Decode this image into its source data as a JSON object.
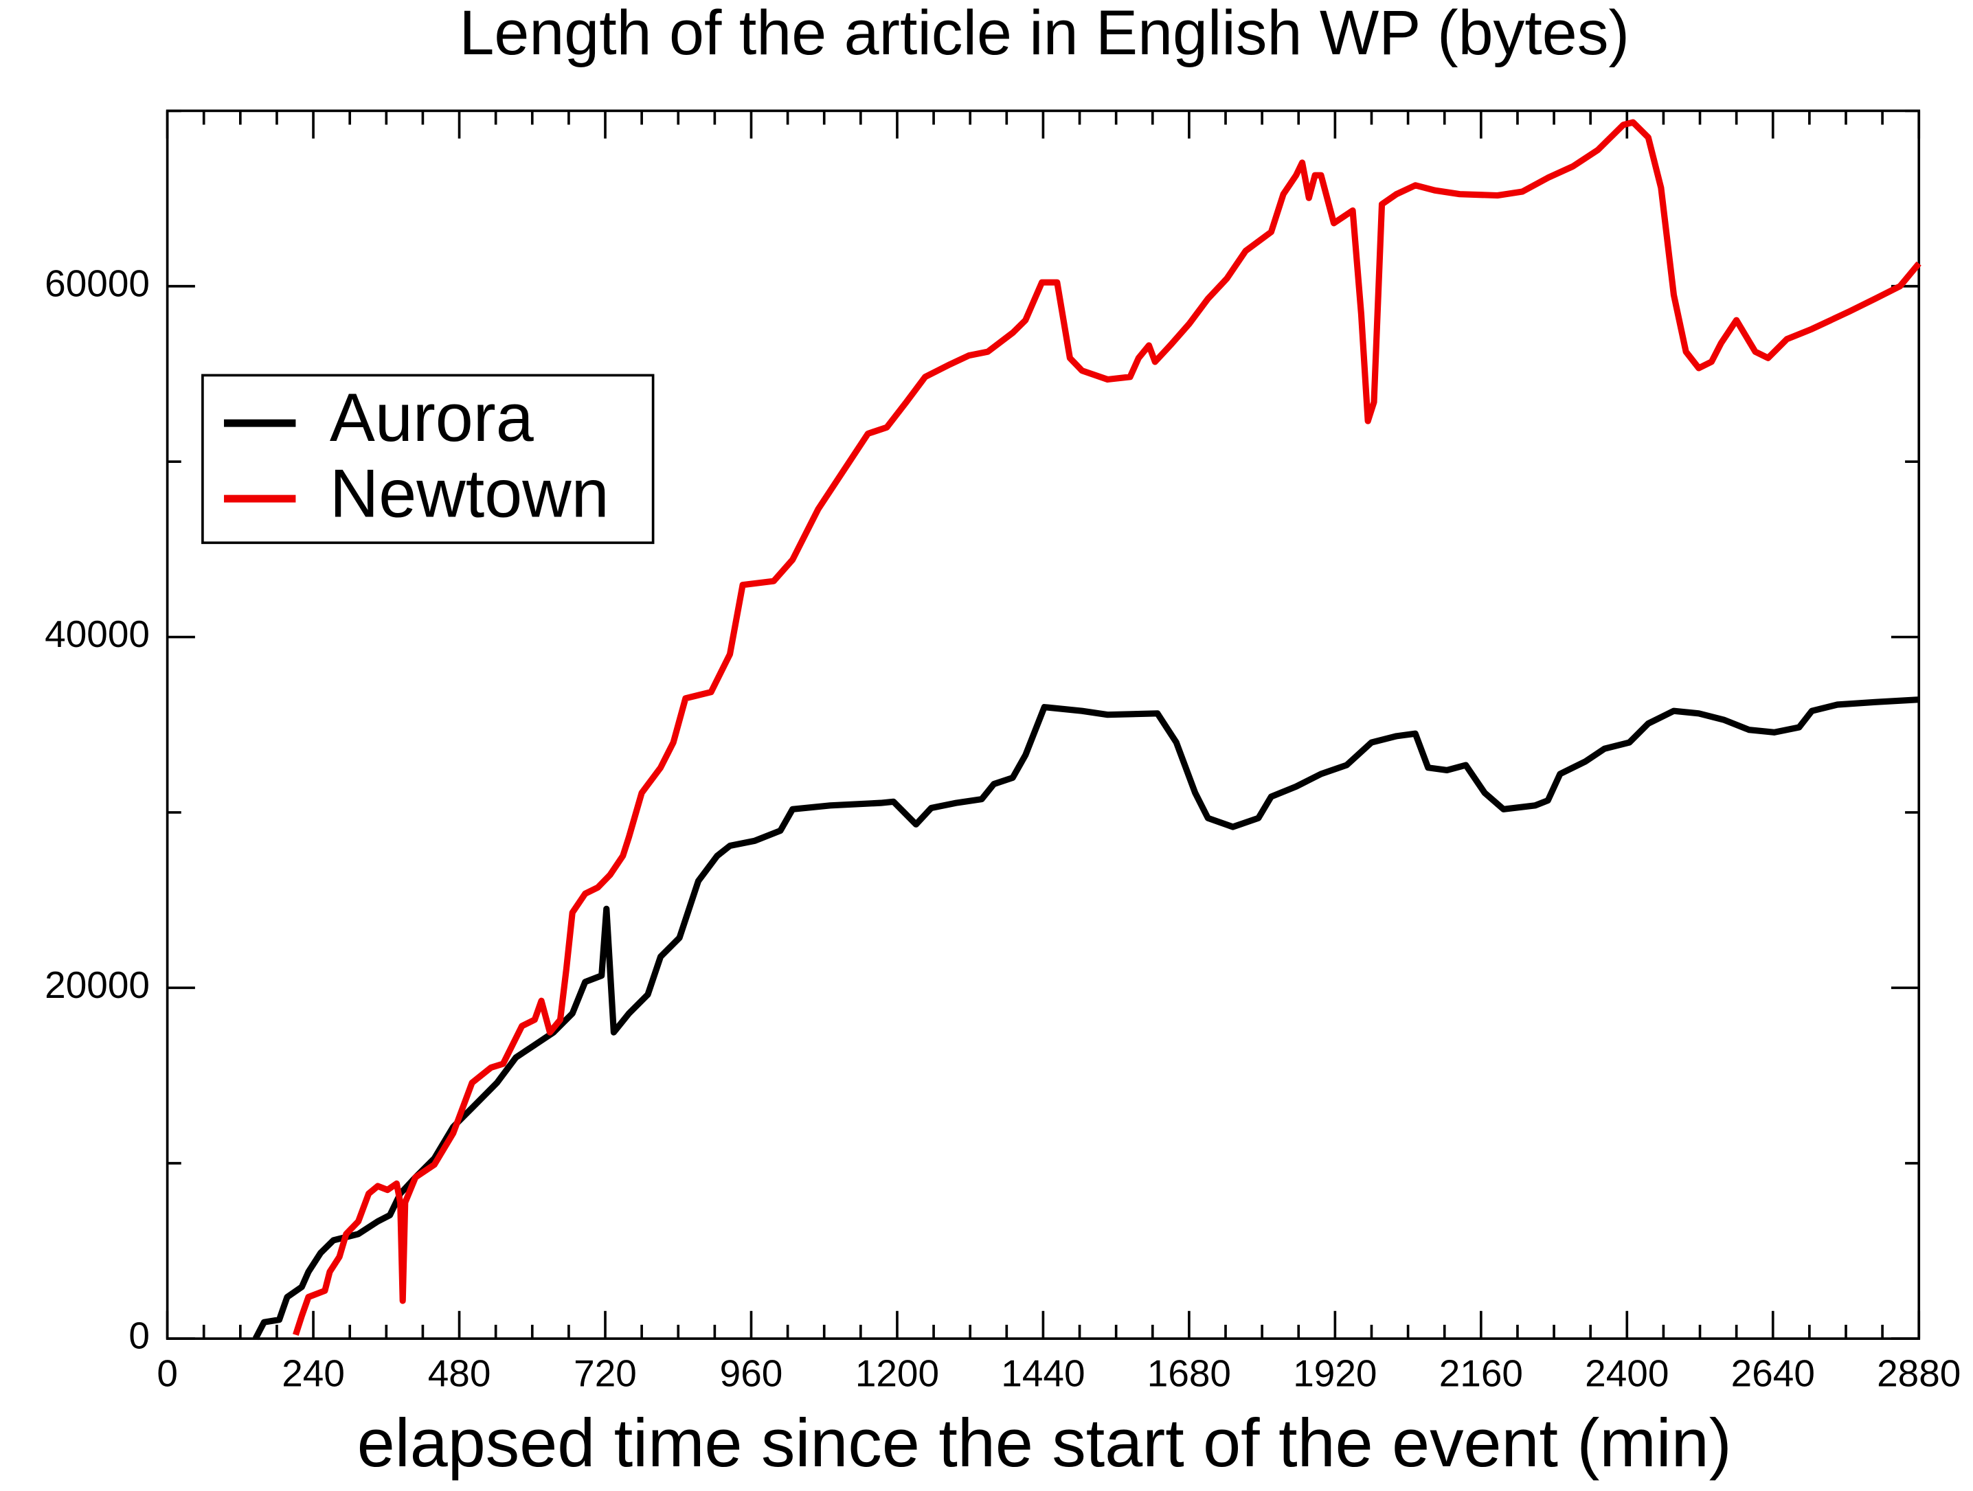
{
  "chart_data": {
    "type": "line",
    "title": "Length of the article in English WP (bytes)",
    "x_label": "elapsed time since the start of the event (min)",
    "xlim": [
      0,
      2880
    ],
    "ylim": [
      0,
      70000
    ],
    "xticks": [
      0,
      240,
      480,
      720,
      960,
      1200,
      1440,
      1680,
      1920,
      2160,
      2400,
      2640,
      2880
    ],
    "yticks": [
      0,
      20000,
      40000,
      60000
    ],
    "legend": "upper left",
    "series": [
      {
        "name": "Aurora",
        "color": "#000000",
        "x": [
          145,
          159,
          184,
          197,
          221,
          232,
          252,
          273,
          314,
          346,
          366,
          383,
          408,
          439,
          470,
          501,
          542,
          573,
          604,
          635,
          666,
          687,
          714,
          722,
          734,
          759,
          790,
          811,
          842,
          873,
          904,
          925,
          966,
          1008,
          1028,
          1090,
          1173,
          1194,
          1231,
          1256,
          1297,
          1339,
          1359,
          1390,
          1411,
          1442,
          1504,
          1546,
          1628,
          1659,
          1690,
          1711,
          1752,
          1794,
          1815,
          1856,
          1897,
          1939,
          1980,
          2021,
          2052,
          2073,
          2104,
          2135,
          2166,
          2197,
          2249,
          2270,
          2290,
          2332,
          2363,
          2404,
          2435,
          2477,
          2518,
          2559,
          2601,
          2642,
          2683,
          2704,
          2746,
          2808,
          2880
        ],
        "values": [
          0,
          934,
          1078,
          2371,
          2946,
          3809,
          4886,
          5605,
          5964,
          6683,
          7042,
          8264,
          9198,
          10276,
          12072,
          13150,
          14588,
          16025,
          16743,
          17462,
          18540,
          20336,
          20696,
          24504,
          17462,
          18540,
          19618,
          21774,
          22851,
          26085,
          27522,
          28097,
          28385,
          28960,
          30181,
          30397,
          30541,
          30612,
          29319,
          30253,
          30541,
          30756,
          31618,
          31978,
          33271,
          36002,
          35786,
          35571,
          35643,
          33990,
          31115,
          29678,
          29175,
          29678,
          30900,
          31475,
          32193,
          32696,
          33990,
          34349,
          34493,
          32553,
          32409,
          32696,
          31115,
          30181,
          30397,
          30684,
          32193,
          32911,
          33630,
          33990,
          35067,
          35786,
          35643,
          35283,
          34708,
          34565,
          34852,
          35786,
          36145,
          36289,
          36433
        ]
      },
      {
        "name": "Newtown",
        "color": "#ee0000",
        "x": [
          211,
          221,
          232,
          259,
          267,
          283,
          294,
          314,
          331,
          346,
          362,
          377,
          383,
          387,
          391,
          408,
          439,
          470,
          501,
          532,
          552,
          583,
          604,
          615,
          629,
          646,
          656,
          666,
          687,
          708,
          728,
          749,
          759,
          780,
          811,
          832,
          852,
          894,
          925,
          946,
          997,
          1028,
          1070,
          1111,
          1152,
          1183,
          1215,
          1246,
          1287,
          1318,
          1349,
          1390,
          1411,
          1438,
          1463,
          1484,
          1504,
          1546,
          1583,
          1597,
          1614,
          1624,
          1649,
          1680,
          1711,
          1742,
          1773,
          1815,
          1835,
          1856,
          1866,
          1877,
          1887,
          1897,
          1918,
          1949,
          1963,
          1974,
          1984,
          1997,
          2021,
          2052,
          2084,
          2125,
          2187,
          2228,
          2270,
          2311,
          2352,
          2394,
          2410,
          2435,
          2456,
          2477,
          2497,
          2518,
          2539,
          2555,
          2580,
          2611,
          2632,
          2663,
          2704,
          2766,
          2808,
          2849,
          2880
        ],
        "values": [
          216,
          1293,
          2371,
          2731,
          3809,
          4671,
          5964,
          6683,
          8264,
          8695,
          8479,
          8839,
          7761,
          2156,
          7761,
          9198,
          9917,
          11713,
          14588,
          15450,
          15665,
          17821,
          18181,
          19258,
          17462,
          18181,
          21055,
          24289,
          25367,
          25726,
          26444,
          27522,
          28600,
          31115,
          32553,
          33990,
          36505,
          36864,
          39020,
          42972,
          43188,
          44409,
          47284,
          49440,
          51595,
          51955,
          53392,
          54829,
          55548,
          56051,
          56266,
          57344,
          58063,
          60219,
          60219,
          55907,
          55188,
          54685,
          54829,
          55907,
          56626,
          55691,
          56626,
          57848,
          59285,
          60434,
          62015,
          63093,
          65249,
          66327,
          67045,
          65033,
          66327,
          66327,
          63596,
          64315,
          58422,
          52314,
          53392,
          64674,
          65249,
          65752,
          65465,
          65249,
          65177,
          65393,
          66183,
          66830,
          67764,
          69201,
          69345,
          68483,
          65608,
          59500,
          56266,
          55332,
          55691,
          56769,
          58063,
          56266,
          55907,
          56985,
          57560,
          58566,
          59285,
          60003,
          61296
        ]
      }
    ]
  }
}
